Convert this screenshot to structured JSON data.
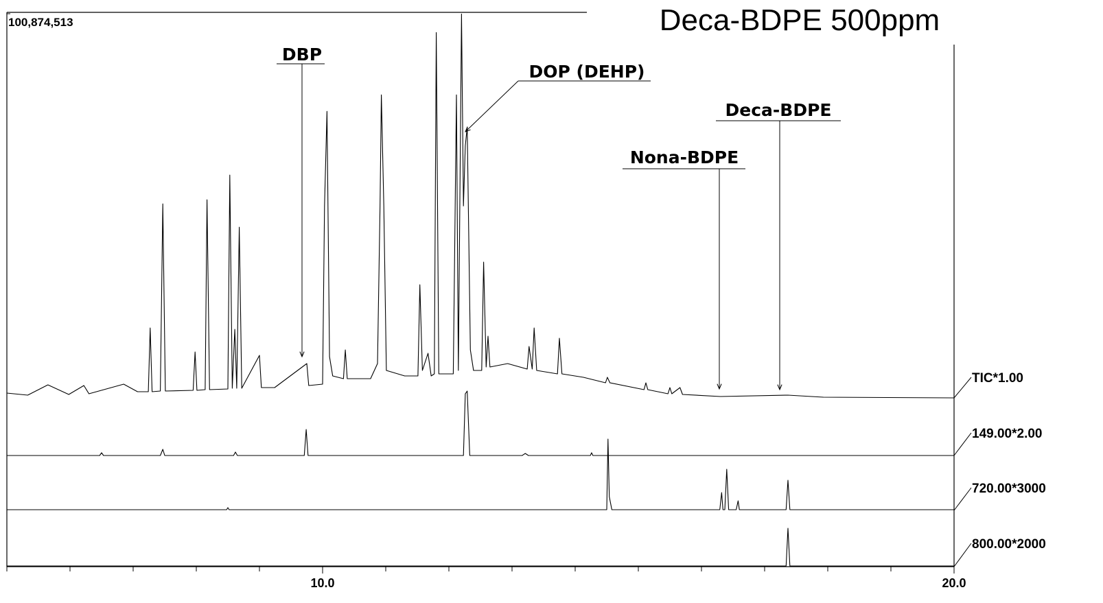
{
  "chart_data": {
    "type": "line",
    "title": "Deca-BDPE 500ppm",
    "xlim": [
      5,
      20
    ],
    "xticks": [
      {
        "value": 10,
        "label": "10.0"
      },
      {
        "value": 20,
        "label": "20.0"
      }
    ],
    "xminorticks": [
      5,
      6,
      7,
      8,
      9,
      10,
      11,
      12,
      13,
      14,
      15,
      16,
      17,
      18,
      19,
      20
    ],
    "ylim": [
      0,
      100874513
    ],
    "yticks": [
      {
        "value": 100874513,
        "label": "100,874,513"
      }
    ],
    "color": "#000000",
    "annotations": [
      "DBP",
      "DOP (DEHP)",
      "Nona-BDPE",
      "Deca-BDPE"
    ],
    "series": [
      {
        "name": "TIC*1.00",
        "x": [
          5.0,
          5.33,
          5.65,
          5.98,
          6.22,
          6.3,
          6.85,
          7.07,
          7.24,
          7.27,
          7.3,
          7.43,
          7.47,
          7.51,
          7.95,
          7.98,
          8.01,
          8.14,
          8.17,
          8.21,
          8.5,
          8.53,
          8.57,
          8.61,
          8.64,
          8.68,
          8.72,
          9.0,
          9.03,
          9.24,
          9.75,
          9.78,
          10.0,
          10.03,
          10.07,
          10.11,
          10.16,
          10.33,
          10.36,
          10.39,
          10.76,
          10.87,
          10.91,
          10.93,
          10.97,
          11.01,
          11.3,
          11.51,
          11.54,
          11.58,
          11.67,
          11.72,
          11.77,
          11.8,
          11.84,
          12.07,
          12.12,
          12.15,
          12.2,
          12.23,
          12.26,
          12.29,
          12.34,
          12.39,
          12.52,
          12.55,
          12.59,
          12.62,
          12.65,
          12.93,
          13.24,
          13.27,
          13.32,
          13.35,
          13.39,
          13.72,
          13.75,
          13.79,
          14.13,
          14.48,
          14.51,
          14.55,
          15.09,
          15.12,
          15.15,
          15.47,
          15.5,
          15.53,
          15.66,
          15.7,
          16.3,
          17.37,
          17.93,
          20.0
        ],
        "values": [
          1260000,
          720000,
          3420000,
          900000,
          3240000,
          1080000,
          3600000,
          1620000,
          1620000,
          18360000,
          1620000,
          1800000,
          50940000,
          1800000,
          1980000,
          12060000,
          1980000,
          2160000,
          52020000,
          2160000,
          2340000,
          58500000,
          2520000,
          18000000,
          2520000,
          44820000,
          2520000,
          11160000,
          2700000,
          2700000,
          9000000,
          3240000,
          3600000,
          50400000,
          75240000,
          10800000,
          5760000,
          5040000,
          12600000,
          5040000,
          5040000,
          9000000,
          50400000,
          79560000,
          50400000,
          7200000,
          5760000,
          5760000,
          29700000,
          7200000,
          11700000,
          5760000,
          6300000,
          95940000,
          6300000,
          6300000,
          79560000,
          7200000,
          100800000,
          50400000,
          66240000,
          71100000,
          12600000,
          7200000,
          7200000,
          35640000,
          8100000,
          16200000,
          8100000,
          9000000,
          7560000,
          13500000,
          7560000,
          18360000,
          7200000,
          6300000,
          15660000,
          6300000,
          5400000,
          3960000,
          5400000,
          3960000,
          2160000,
          3960000,
          2160000,
          1080000,
          2700000,
          1080000,
          2700000,
          900000,
          360000,
          720000,
          180000,
          0
        ]
      },
      {
        "name": "149.00*2.00",
        "x": [
          5.0,
          6.47,
          6.5,
          6.53,
          7.43,
          7.47,
          7.5,
          8.59,
          8.62,
          8.65,
          9.71,
          9.74,
          9.77,
          12.23,
          12.26,
          12.29,
          12.33,
          13.16,
          13.21,
          13.26,
          14.24,
          14.26,
          14.28,
          20.0
        ],
        "values": [
          0,
          0,
          720000,
          0,
          0,
          1620000,
          0,
          0,
          900000,
          0,
          0,
          6840000,
          0,
          0,
          16200000,
          16920000,
          0,
          0,
          540000,
          0,
          0,
          720000,
          0,
          0
        ]
      },
      {
        "name": "720.00*3000",
        "x": [
          5.0,
          8.48,
          8.5,
          8.52,
          14.5,
          14.52,
          14.54,
          14.58,
          16.29,
          16.32,
          16.34,
          16.37,
          16.4,
          16.43,
          16.55,
          16.58,
          16.6,
          17.34,
          17.37,
          17.4,
          20.0
        ],
        "values": [
          180000,
          180000,
          720000,
          180000,
          180000,
          18720000,
          3600000,
          180000,
          180000,
          4680000,
          180000,
          180000,
          10800000,
          180000,
          180000,
          2520000,
          180000,
          180000,
          7920000,
          180000,
          180000
        ]
      },
      {
        "name": "800.00*2000",
        "x": [
          5.0,
          17.34,
          17.37,
          17.4,
          20.0
        ],
        "values": [
          180000,
          180000,
          10080000,
          180000,
          180000
        ]
      }
    ]
  }
}
